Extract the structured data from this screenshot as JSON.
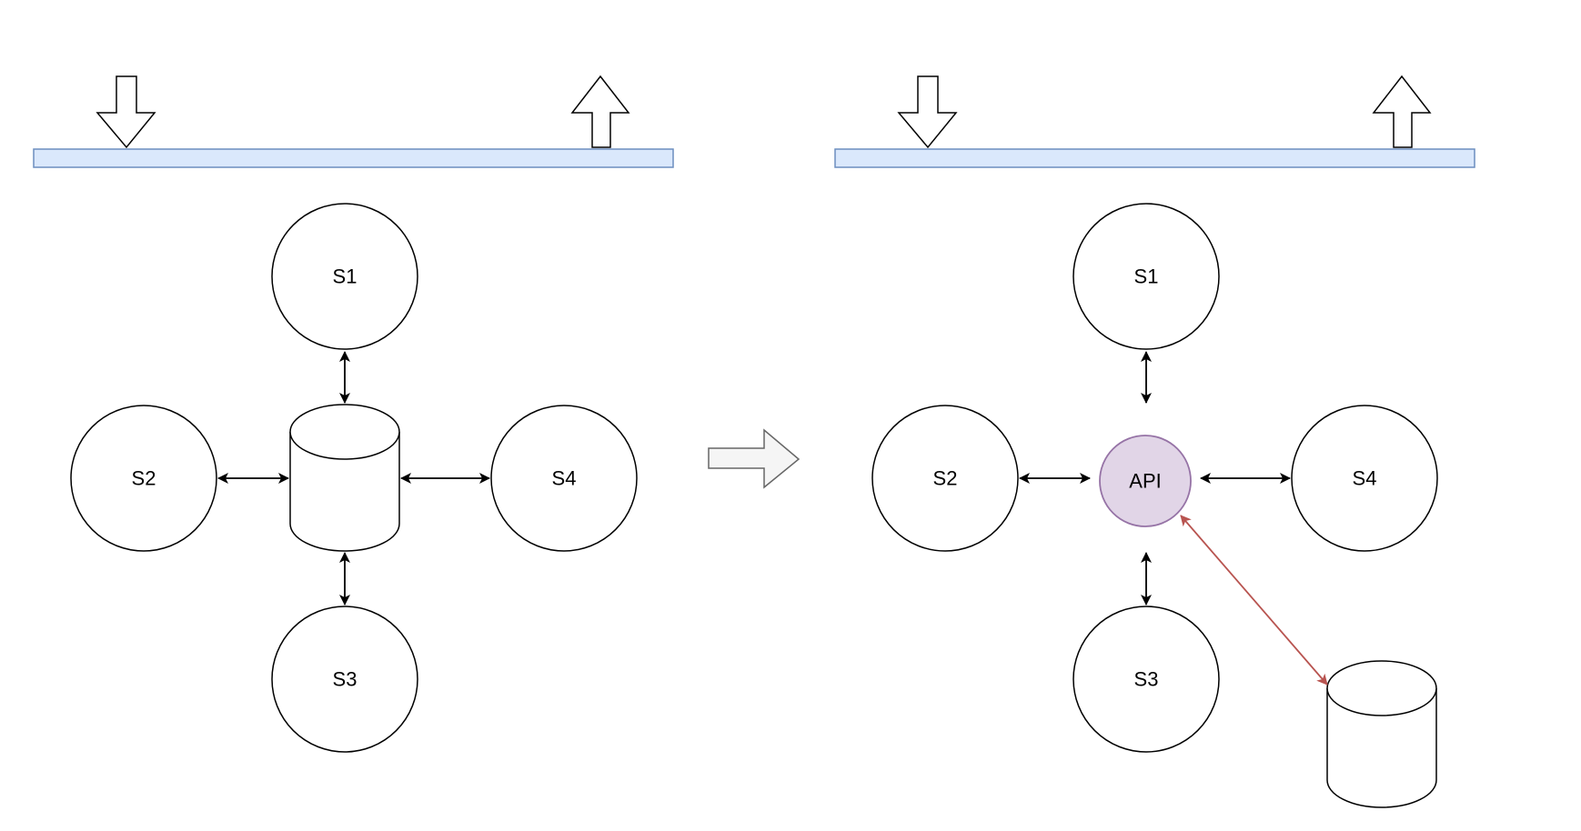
{
  "colors": {
    "stroke": "#000000",
    "queue_fill": "#dae8fc",
    "queue_stroke": "#6c8ebf",
    "api_fill": "#e1d5e7",
    "api_stroke": "#9673a6",
    "db_link": "#b85450",
    "transition_fill": "#f5f5f5",
    "transition_stroke": "#666666"
  },
  "before": {
    "services": {
      "s1": "S1",
      "s2": "S2",
      "s3": "S3",
      "s4": "S4"
    }
  },
  "after": {
    "services": {
      "s1": "S1",
      "s2": "S2",
      "s3": "S3",
      "s4": "S4"
    },
    "api_label": "API"
  }
}
